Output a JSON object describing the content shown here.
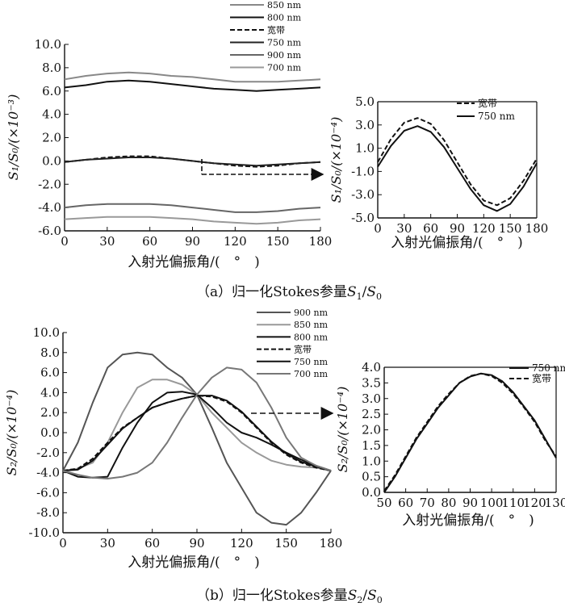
{
  "chart_data": [
    {
      "type": "line",
      "id": "a-main",
      "xlabel": "入射光偏振角/(　°　)",
      "ylabel": "S₁/S₀/(×10⁻³)",
      "xlim": [
        0,
        180
      ],
      "ylim": [
        -6,
        10
      ],
      "xticks": [
        "0",
        "30",
        "60",
        "90",
        "120",
        "150",
        "180"
      ],
      "yticks": [
        "-6.0",
        "-4.0",
        "-2.0",
        "0.0",
        "2.0",
        "4.0",
        "6.0",
        "8.0",
        "10.0"
      ],
      "x": [
        0,
        15,
        30,
        45,
        60,
        75,
        90,
        105,
        120,
        135,
        150,
        165,
        180
      ],
      "legend": [
        "850 nm",
        "800 nm",
        "宽带",
        "750 nm",
        "900 nm",
        "700 nm"
      ],
      "series": [
        {
          "name": "850 nm",
          "color": "#888888",
          "dash": "",
          "values": [
            7.0,
            7.3,
            7.5,
            7.6,
            7.5,
            7.3,
            7.2,
            7.0,
            6.8,
            6.8,
            6.8,
            6.9,
            7.0
          ]
        },
        {
          "name": "800 nm",
          "color": "#111111",
          "dash": "",
          "values": [
            6.3,
            6.5,
            6.8,
            6.9,
            6.8,
            6.6,
            6.4,
            6.2,
            6.1,
            6.0,
            6.1,
            6.2,
            6.3
          ]
        },
        {
          "name": "宽带",
          "color": "#111111",
          "dash": "6,3",
          "values": [
            -0.1,
            0.1,
            0.3,
            0.4,
            0.4,
            0.2,
            0.0,
            -0.2,
            -0.4,
            -0.5,
            -0.4,
            -0.2,
            -0.1
          ]
        },
        {
          "name": "750 nm",
          "color": "#222222",
          "dash": "",
          "values": [
            -0.1,
            0.1,
            0.2,
            0.3,
            0.3,
            0.2,
            0.0,
            -0.2,
            -0.3,
            -0.4,
            -0.3,
            -0.2,
            -0.1
          ]
        },
        {
          "name": "900 nm",
          "color": "#666666",
          "dash": "",
          "values": [
            -4.0,
            -3.8,
            -3.7,
            -3.7,
            -3.7,
            -3.8,
            -4.0,
            -4.2,
            -4.4,
            -4.4,
            -4.3,
            -4.1,
            -4.0
          ]
        },
        {
          "name": "700 nm",
          "color": "#999999",
          "dash": "",
          "values": [
            -5.0,
            -4.9,
            -4.8,
            -4.8,
            -4.8,
            -4.9,
            -5.0,
            -5.2,
            -5.3,
            -5.4,
            -5.3,
            -5.1,
            -5.0
          ]
        }
      ]
    },
    {
      "type": "line",
      "id": "a-inset",
      "xlabel": "入射光偏振角/(　°　)",
      "ylabel": "S₁/S₀/(×10⁻⁴)",
      "xlim": [
        0,
        180
      ],
      "ylim": [
        -5,
        5
      ],
      "xticks": [
        "0",
        "30",
        "60",
        "90",
        "120",
        "150",
        "180"
      ],
      "yticks": [
        "-5.0",
        "-3.0",
        "-1.0",
        "1.0",
        "3.0",
        "5.0"
      ],
      "x": [
        0,
        15,
        30,
        45,
        60,
        75,
        90,
        105,
        120,
        135,
        150,
        165,
        180
      ],
      "legend": [
        "宽带",
        "750 nm"
      ],
      "series": [
        {
          "name": "宽带",
          "color": "#111111",
          "dash": "6,3",
          "values": [
            -0.2,
            1.8,
            3.2,
            3.6,
            3.1,
            1.7,
            -0.2,
            -2.1,
            -3.5,
            -3.9,
            -3.3,
            -1.8,
            0.1
          ]
        },
        {
          "name": "750 nm",
          "color": "#111111",
          "dash": "",
          "values": [
            -0.6,
            1.2,
            2.5,
            2.9,
            2.4,
            1.1,
            -0.7,
            -2.5,
            -3.9,
            -4.4,
            -3.8,
            -2.3,
            -0.3
          ]
        }
      ]
    },
    {
      "type": "line",
      "id": "b-main",
      "xlabel": "入射光偏振角/(　°　)",
      "ylabel": "S₂/S₀/(×10⁻⁴)",
      "xlim": [
        0,
        180
      ],
      "ylim": [
        -10,
        10
      ],
      "xticks": [
        "0",
        "30",
        "60",
        "90",
        "120",
        "150",
        "180"
      ],
      "yticks": [
        "-10.0",
        "-8.0",
        "-6.0",
        "-4.0",
        "-2.0",
        "0.0",
        "2.0",
        "4.0",
        "6.0",
        "8.0",
        "10.0"
      ],
      "x": [
        0,
        10,
        20,
        30,
        40,
        50,
        60,
        70,
        80,
        90,
        100,
        110,
        120,
        130,
        140,
        150,
        160,
        170,
        180
      ],
      "legend": [
        "900 nm",
        "850 nm",
        "800 nm",
        "宽带",
        "750 nm",
        "700 nm"
      ],
      "series": [
        {
          "name": "900 nm",
          "color": "#555555",
          "dash": "",
          "values": [
            -3.8,
            -1.0,
            3.0,
            6.5,
            7.8,
            8.0,
            7.8,
            6.5,
            5.5,
            3.8,
            0.5,
            -3.0,
            -5.5,
            -8.0,
            -9.0,
            -9.2,
            -8.0,
            -6.0,
            -3.8
          ]
        },
        {
          "name": "850 nm",
          "color": "#999999",
          "dash": "",
          "values": [
            -3.8,
            -3.6,
            -3.0,
            -1.0,
            2.0,
            4.5,
            5.3,
            5.3,
            4.8,
            3.8,
            2.0,
            0.5,
            -1.0,
            -2.0,
            -2.8,
            -3.2,
            -3.4,
            -3.5,
            -3.8
          ]
        },
        {
          "name": "800 nm",
          "color": "#111111",
          "dash": "",
          "values": [
            -3.8,
            -4.4,
            -4.5,
            -4.4,
            -1.5,
            1.0,
            3.0,
            4.0,
            4.1,
            3.8,
            2.5,
            1.0,
            0.0,
            -0.5,
            -1.2,
            -2.0,
            -2.7,
            -3.3,
            -3.8
          ]
        },
        {
          "name": "宽带",
          "color": "#111111",
          "dash": "6,3",
          "values": [
            -3.8,
            -3.6,
            -2.6,
            -1.0,
            0.5,
            1.5,
            2.5,
            3.0,
            3.4,
            3.7,
            3.6,
            3.1,
            2.0,
            0.5,
            -1.0,
            -2.2,
            -3.0,
            -3.5,
            -3.8
          ]
        },
        {
          "name": "750 nm",
          "color": "#111111",
          "dash": "",
          "values": [
            -3.8,
            -3.7,
            -2.8,
            -1.2,
            0.4,
            1.5,
            2.5,
            3.0,
            3.4,
            3.7,
            3.7,
            3.2,
            2.1,
            0.6,
            -0.9,
            -2.1,
            -2.9,
            -3.4,
            -3.8
          ]
        },
        {
          "name": "700 nm",
          "color": "#777777",
          "dash": "",
          "values": [
            -3.8,
            -4.2,
            -4.5,
            -4.6,
            -4.4,
            -4.0,
            -3.0,
            -1.0,
            1.5,
            3.8,
            5.5,
            6.5,
            6.3,
            5.0,
            2.5,
            -0.5,
            -2.5,
            -3.3,
            -3.8
          ]
        }
      ]
    },
    {
      "type": "line",
      "id": "b-inset",
      "xlabel": "入射光偏振角/(　°　)",
      "ylabel": "S₂/S₀/(×10⁻⁴)",
      "xlim": [
        50,
        130
      ],
      "ylim": [
        0,
        4
      ],
      "xticks": [
        "50",
        "60",
        "70",
        "80",
        "90",
        "100",
        "110",
        "120",
        "130"
      ],
      "yticks": [
        "0.0",
        "0.5",
        "1.0",
        "1.5",
        "2.0",
        "2.5",
        "3.0",
        "3.5",
        "4.0"
      ],
      "x": [
        50,
        55,
        60,
        65,
        70,
        75,
        80,
        85,
        90,
        95,
        100,
        105,
        110,
        115,
        120,
        125,
        130
      ],
      "legend": [
        "750 nm",
        "宽带"
      ],
      "series": [
        {
          "name": "750 nm",
          "color": "#111111",
          "dash": "",
          "values": [
            0.0,
            0.5,
            1.1,
            1.7,
            2.2,
            2.7,
            3.1,
            3.5,
            3.7,
            3.8,
            3.75,
            3.55,
            3.2,
            2.75,
            2.3,
            1.7,
            1.1
          ]
        },
        {
          "name": "宽带",
          "color": "#111111",
          "dash": "6,3",
          "values": [
            0.05,
            0.55,
            1.15,
            1.75,
            2.25,
            2.75,
            3.15,
            3.5,
            3.72,
            3.8,
            3.72,
            3.5,
            3.15,
            2.72,
            2.25,
            1.65,
            1.15
          ]
        }
      ]
    }
  ],
  "captions": {
    "a_prefix": "（a）归一化Stokes参量",
    "a_var1": "S",
    "a_sub1": "1",
    "a_slash": "/",
    "a_var2": "S",
    "a_sub2": "0",
    "b_prefix": "（b）归一化Stokes参量",
    "b_var1": "S",
    "b_sub1": "2",
    "b_slash": "/",
    "b_var2": "S",
    "b_sub2": "0"
  }
}
